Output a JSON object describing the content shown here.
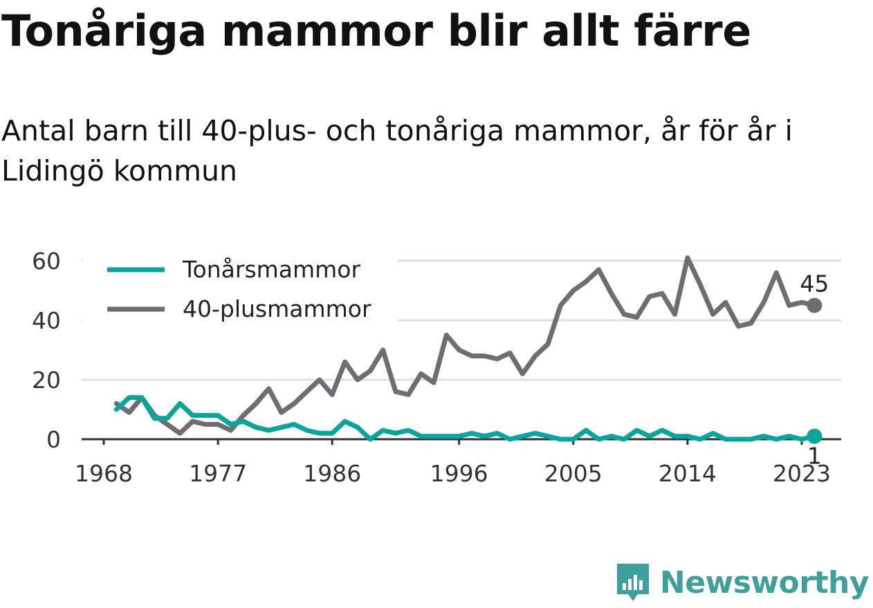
{
  "title": "Tonåriga mammor blir allt färre",
  "subtitle": "Antal barn till 40-plus- och tonåriga mammor, år för år i Lidingö kommun",
  "brand": {
    "name": "Newsworthy",
    "icon": "newsworthy-logo-icon",
    "color": "#3f9f9a"
  },
  "chart_data": {
    "type": "line",
    "title": "Tonåriga mammor blir allt färre",
    "subtitle": "Antal barn till 40-plus- och tonåriga mammor, år för år i Lidingö kommun",
    "xlabel": "",
    "ylabel": "",
    "xlim": [
      1968,
      2026
    ],
    "ylim": [
      0,
      62
    ],
    "x_ticks": [
      1968,
      1977,
      1986,
      1996,
      2005,
      2014,
      2023
    ],
    "y_ticks": [
      0,
      20,
      40,
      60
    ],
    "grid": "horizontal",
    "legend_position": "top-left",
    "x": [
      1969,
      1970,
      1971,
      1972,
      1973,
      1974,
      1975,
      1976,
      1977,
      1978,
      1979,
      1980,
      1981,
      1982,
      1983,
      1984,
      1985,
      1986,
      1987,
      1988,
      1989,
      1990,
      1991,
      1992,
      1993,
      1994,
      1995,
      1996,
      1997,
      1998,
      1999,
      2000,
      2001,
      2002,
      2003,
      2004,
      2005,
      2006,
      2007,
      2008,
      2009,
      2010,
      2011,
      2012,
      2013,
      2014,
      2015,
      2016,
      2017,
      2018,
      2019,
      2020,
      2021,
      2022,
      2023,
      2024
    ],
    "series": [
      {
        "name": "Tonårsmammor",
        "color": "#0aa59a",
        "values": [
          10,
          14,
          14,
          7,
          7,
          12,
          8,
          8,
          8,
          5,
          6,
          4,
          3,
          4,
          5,
          3,
          2,
          2,
          6,
          4,
          0,
          3,
          2,
          3,
          1,
          1,
          1,
          1,
          2,
          1,
          2,
          0,
          1,
          2,
          1,
          0,
          0,
          3,
          0,
          1,
          0,
          3,
          1,
          3,
          1,
          1,
          0,
          2,
          0,
          0,
          0,
          1,
          0,
          1,
          0,
          1
        ],
        "end_label": "1"
      },
      {
        "name": "40-plusmammor",
        "color": "#6e6d72",
        "values": [
          12,
          9,
          14,
          8,
          5,
          2,
          6,
          5,
          5,
          3,
          8,
          12,
          17,
          9,
          12,
          16,
          20,
          15,
          26,
          20,
          23,
          30,
          16,
          15,
          22,
          19,
          35,
          30,
          28,
          28,
          27,
          29,
          22,
          28,
          32,
          45,
          50,
          53,
          57,
          49,
          42,
          41,
          48,
          49,
          42,
          61,
          52,
          42,
          46,
          38,
          39,
          46,
          56,
          45,
          46,
          45
        ],
        "end_label": "45"
      }
    ]
  }
}
